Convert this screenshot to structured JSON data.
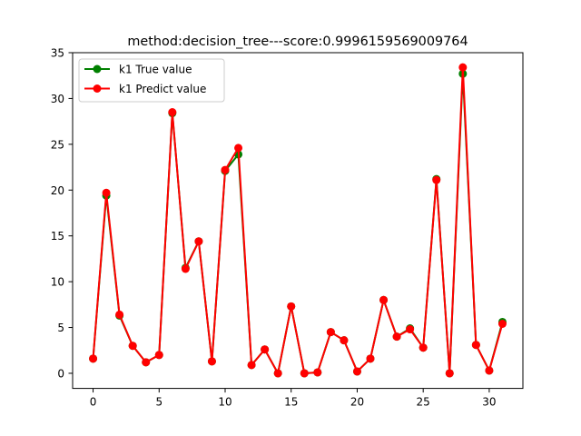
{
  "chart_data": {
    "type": "line",
    "title": "method:decision_tree---score:0.9996159569009764",
    "xlabel": "",
    "ylabel": "",
    "xlim": [
      -1.55,
      32.55
    ],
    "ylim": [
      -1.65,
      35
    ],
    "x_ticks": [
      0,
      5,
      10,
      15,
      20,
      25,
      30
    ],
    "y_ticks": [
      0,
      5,
      10,
      15,
      20,
      25,
      30,
      35
    ],
    "grid": false,
    "legend_position": "top-left",
    "x": [
      0,
      1,
      2,
      3,
      4,
      5,
      6,
      7,
      8,
      9,
      10,
      11,
      12,
      13,
      14,
      15,
      16,
      17,
      18,
      19,
      20,
      21,
      22,
      23,
      24,
      25,
      26,
      27,
      28,
      29,
      30,
      31
    ],
    "series": [
      {
        "name": "k1 True value",
        "color": "#008000",
        "marker": "circle",
        "values": [
          1.6,
          19.4,
          6.3,
          3.0,
          1.2,
          2.0,
          28.4,
          11.5,
          14.4,
          1.3,
          22.1,
          23.9,
          0.9,
          2.6,
          0.0,
          7.3,
          0.0,
          0.1,
          4.5,
          3.6,
          0.2,
          1.6,
          8.0,
          4.0,
          4.9,
          2.8,
          21.2,
          0.0,
          32.7,
          3.1,
          0.3,
          5.6
        ]
      },
      {
        "name": "k1 Predict value",
        "color": "#ff0000",
        "marker": "circle",
        "values": [
          1.6,
          19.7,
          6.4,
          3.0,
          1.2,
          2.0,
          28.5,
          11.4,
          14.4,
          1.3,
          22.2,
          24.6,
          0.9,
          2.6,
          0.0,
          7.3,
          0.0,
          0.1,
          4.5,
          3.6,
          0.2,
          1.6,
          8.0,
          4.0,
          4.8,
          2.8,
          21.1,
          0.0,
          33.4,
          3.1,
          0.3,
          5.4
        ]
      }
    ]
  }
}
